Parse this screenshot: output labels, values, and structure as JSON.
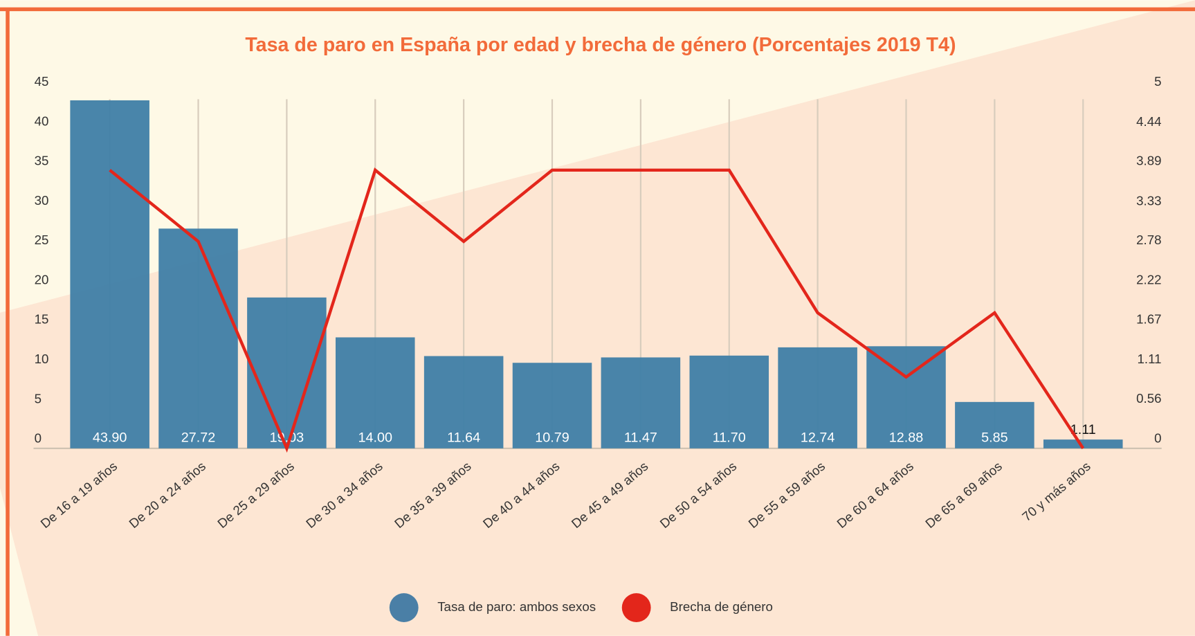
{
  "chart_data": {
    "type": "bar_line",
    "title": "Tasa de paro en España por edad y brecha de género (Porcentajes 2019 T4)",
    "categories": [
      "De 16 a 19 años",
      "De 20 a 24 años",
      "De 25 a 29 años",
      "De 30 a 34 años",
      "De 35 a 39 años",
      "De 40 a 44 años",
      "De 45 a 49 años",
      "De 50 a 54 años",
      "De 55 a 59 años",
      "De 60 a 64 años",
      "De 65 a 69 años",
      "70 y más años"
    ],
    "series": [
      {
        "name": "Tasa de paro: ambos sexos",
        "type": "bar",
        "color": "#3f7ea6",
        "legend_color": "#4a7fa6",
        "values": [
          43.9,
          27.72,
          19.03,
          14.0,
          11.64,
          10.79,
          11.47,
          11.7,
          12.74,
          12.88,
          5.85,
          1.11
        ],
        "value_labels": [
          "43.90",
          "27.72",
          "19.03",
          "14.00",
          "11.64",
          "10.79",
          "11.47",
          "11.70",
          "12.74",
          "12.88",
          "5.85",
          "1.11"
        ]
      },
      {
        "name": "Brecha de género",
        "type": "line",
        "axis": "y2",
        "color": "#e3261b",
        "values": [
          3.9,
          2.9,
          0,
          3.9,
          2.9,
          3.9,
          3.9,
          3.9,
          1.9,
          1.0,
          1.9,
          0
        ]
      }
    ],
    "ylim": [
      0,
      45
    ],
    "yticks": [
      0,
      5,
      10,
      15,
      20,
      25,
      30,
      35,
      40,
      45
    ],
    "y2lim": [
      0,
      5
    ],
    "y2ticks": [
      0,
      0.56,
      1.11,
      1.67,
      2.22,
      2.78,
      3.33,
      3.89,
      4.44,
      5
    ],
    "grid": true
  }
}
